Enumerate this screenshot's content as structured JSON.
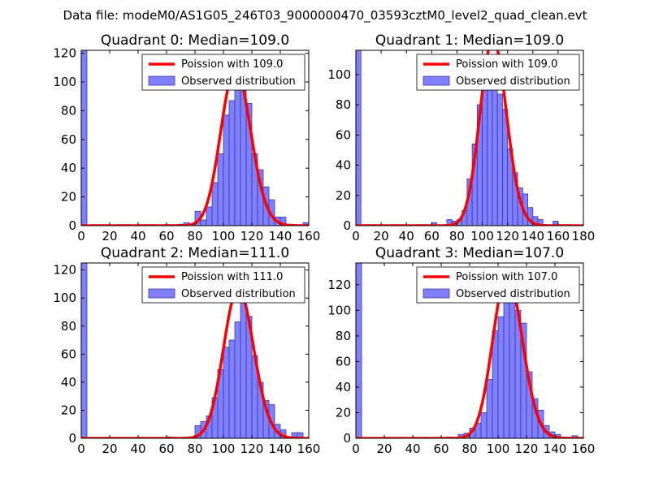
{
  "figure": {
    "suptitle": "Data file: modeM0/AS1G05_246T03_9000000470_03593cztM0_level2_quad_clean.evt"
  },
  "colors": {
    "bar_fill": "#7f7fff",
    "bar_edge": "#3838a0",
    "poisson_line": "#ff0000",
    "background": "#ffffff"
  },
  "chart_data": [
    {
      "type": "bar",
      "title": "Quadrant 0: Median=109.0",
      "median": 109.0,
      "xlim": [
        0,
        160
      ],
      "ylim": [
        0,
        122
      ],
      "xticks": [
        0,
        20,
        40,
        60,
        80,
        100,
        120,
        140,
        160
      ],
      "yticks": [
        0,
        20,
        40,
        60,
        80,
        100,
        120
      ],
      "bin_width": 4,
      "bins": [
        {
          "x": 0,
          "h": 122
        },
        {
          "x": 68,
          "h": 1
        },
        {
          "x": 72,
          "h": 2
        },
        {
          "x": 80,
          "h": 10
        },
        {
          "x": 84,
          "h": 4
        },
        {
          "x": 88,
          "h": 13
        },
        {
          "x": 92,
          "h": 30
        },
        {
          "x": 96,
          "h": 50
        },
        {
          "x": 100,
          "h": 77
        },
        {
          "x": 104,
          "h": 87
        },
        {
          "x": 108,
          "h": 95
        },
        {
          "x": 112,
          "h": 114
        },
        {
          "x": 116,
          "h": 85
        },
        {
          "x": 120,
          "h": 50
        },
        {
          "x": 124,
          "h": 39
        },
        {
          "x": 128,
          "h": 27
        },
        {
          "x": 132,
          "h": 18
        },
        {
          "x": 136,
          "h": 6
        },
        {
          "x": 140,
          "h": 6
        },
        {
          "x": 156,
          "h": 2
        }
      ],
      "legend": [
        {
          "label": "Poission with 109.0",
          "kind": "line"
        },
        {
          "label": "Observed distribution",
          "kind": "patch"
        }
      ],
      "legend_position": "top-right"
    },
    {
      "type": "bar",
      "title": "Quadrant 1: Median=109.0",
      "median": 109.0,
      "xlim": [
        0,
        180
      ],
      "ylim": [
        0,
        116
      ],
      "xticks": [
        0,
        20,
        40,
        60,
        80,
        100,
        120,
        140,
        160,
        180
      ],
      "yticks": [
        0,
        20,
        40,
        60,
        80,
        100
      ],
      "bin_width": 4,
      "bins": [
        {
          "x": 0,
          "h": 116
        },
        {
          "x": 60,
          "h": 2
        },
        {
          "x": 72,
          "h": 4
        },
        {
          "x": 76,
          "h": 3
        },
        {
          "x": 80,
          "h": 4
        },
        {
          "x": 84,
          "h": 10
        },
        {
          "x": 88,
          "h": 31
        },
        {
          "x": 92,
          "h": 54
        },
        {
          "x": 96,
          "h": 80
        },
        {
          "x": 100,
          "h": 92
        },
        {
          "x": 104,
          "h": 97
        },
        {
          "x": 108,
          "h": 109
        },
        {
          "x": 112,
          "h": 87
        },
        {
          "x": 116,
          "h": 77
        },
        {
          "x": 120,
          "h": 51
        },
        {
          "x": 124,
          "h": 35
        },
        {
          "x": 128,
          "h": 25
        },
        {
          "x": 132,
          "h": 21
        },
        {
          "x": 136,
          "h": 12
        },
        {
          "x": 140,
          "h": 6
        },
        {
          "x": 144,
          "h": 4
        },
        {
          "x": 156,
          "h": 3
        }
      ],
      "legend": [
        {
          "label": "Poission with 109.0",
          "kind": "line"
        },
        {
          "label": "Observed distribution",
          "kind": "patch"
        }
      ],
      "legend_position": "top-right"
    },
    {
      "type": "bar",
      "title": "Quadrant 2: Median=111.0",
      "median": 111.0,
      "xlim": [
        0,
        160
      ],
      "ylim": [
        0,
        125
      ],
      "xticks": [
        0,
        20,
        40,
        60,
        80,
        100,
        120,
        140,
        160
      ],
      "yticks": [
        0,
        20,
        40,
        60,
        80,
        100,
        120
      ],
      "bin_width": 4,
      "bins": [
        {
          "x": 0,
          "h": 125
        },
        {
          "x": 60,
          "h": 1
        },
        {
          "x": 80,
          "h": 9
        },
        {
          "x": 84,
          "h": 12
        },
        {
          "x": 88,
          "h": 16
        },
        {
          "x": 92,
          "h": 29
        },
        {
          "x": 96,
          "h": 49
        },
        {
          "x": 100,
          "h": 65
        },
        {
          "x": 104,
          "h": 70
        },
        {
          "x": 108,
          "h": 83
        },
        {
          "x": 112,
          "h": 111
        },
        {
          "x": 116,
          "h": 87
        },
        {
          "x": 120,
          "h": 59
        },
        {
          "x": 124,
          "h": 40
        },
        {
          "x": 128,
          "h": 27
        },
        {
          "x": 132,
          "h": 24
        },
        {
          "x": 136,
          "h": 10
        },
        {
          "x": 140,
          "h": 6
        },
        {
          "x": 148,
          "h": 4
        },
        {
          "x": 152,
          "h": 4
        }
      ],
      "legend": [
        {
          "label": "Poission with 111.0",
          "kind": "line"
        },
        {
          "label": "Observed distribution",
          "kind": "patch"
        }
      ],
      "legend_position": "top-right"
    },
    {
      "type": "bar",
      "title": "Quadrant 3: Median=107.0",
      "median": 107.0,
      "xlim": [
        0,
        160
      ],
      "ylim": [
        0,
        137
      ],
      "xticks": [
        0,
        20,
        40,
        60,
        80,
        100,
        120,
        140,
        160
      ],
      "yticks": [
        0,
        20,
        40,
        60,
        80,
        100,
        120
      ],
      "bin_width": 4,
      "bins": [
        {
          "x": 0,
          "h": 137
        },
        {
          "x": 64,
          "h": 1
        },
        {
          "x": 72,
          "h": 3
        },
        {
          "x": 76,
          "h": 4
        },
        {
          "x": 80,
          "h": 8
        },
        {
          "x": 84,
          "h": 12
        },
        {
          "x": 88,
          "h": 20
        },
        {
          "x": 92,
          "h": 46
        },
        {
          "x": 96,
          "h": 84
        },
        {
          "x": 100,
          "h": 95
        },
        {
          "x": 104,
          "h": 133
        },
        {
          "x": 108,
          "h": 110
        },
        {
          "x": 112,
          "h": 100
        },
        {
          "x": 116,
          "h": 90
        },
        {
          "x": 120,
          "h": 52
        },
        {
          "x": 124,
          "h": 31
        },
        {
          "x": 128,
          "h": 22
        },
        {
          "x": 132,
          "h": 10
        },
        {
          "x": 136,
          "h": 5
        },
        {
          "x": 140,
          "h": 3
        },
        {
          "x": 152,
          "h": 2
        }
      ],
      "legend": [
        {
          "label": "Poission with 107.0",
          "kind": "line"
        },
        {
          "label": "Observed distribution",
          "kind": "patch"
        }
      ],
      "legend_position": "top-right"
    }
  ]
}
